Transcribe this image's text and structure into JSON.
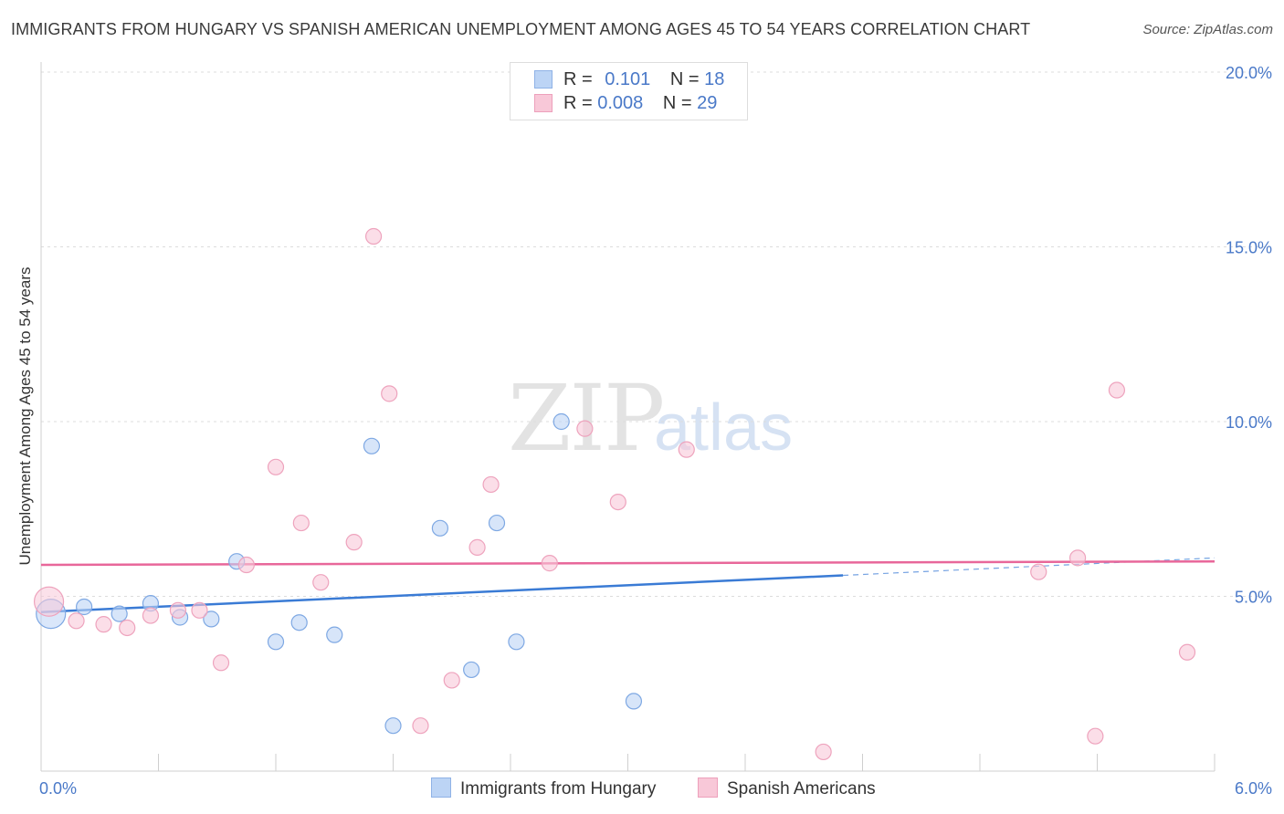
{
  "title": "IMMIGRANTS FROM HUNGARY VS SPANISH AMERICAN UNEMPLOYMENT AMONG AGES 45 TO 54 YEARS CORRELATION CHART",
  "source": "Source: ZipAtlas.com",
  "watermark": {
    "zip": "ZIP",
    "atlas": "atlas"
  },
  "colors": {
    "blue": "#3a7bd5",
    "blue_fill": "#bcd4f5",
    "pink": "#e8679a",
    "pink_fill": "#f8c8d8",
    "tick_text": "#4a79c8"
  },
  "legend_top": {
    "rows": [
      {
        "r_label": "R = ",
        "r_value": "0.101",
        "n_label": "N = ",
        "n_value": "18"
      },
      {
        "r_label": "R = ",
        "r_value": "0.008",
        "n_label": "N = ",
        "n_value": "29"
      }
    ]
  },
  "chart_data": {
    "type": "scatter",
    "title": "IMMIGRANTS FROM HUNGARY VS SPANISH AMERICAN UNEMPLOYMENT AMONG AGES 45 TO 54 YEARS CORRELATION CHART",
    "xlabel": "",
    "ylabel": "Unemployment Among Ages 45 to 54 years",
    "xlim": [
      0,
      6
    ],
    "ylim": [
      0,
      20
    ],
    "x_tick_labels": [
      "0.0%",
      "6.0%"
    ],
    "y_ticks": [
      5,
      10,
      15,
      20
    ],
    "y_tick_labels": [
      "5.0%",
      "10.0%",
      "15.0%",
      "20.0%"
    ],
    "grid": true,
    "legend_placement": "bottom",
    "series": [
      {
        "name": "Immigrants from Hungary",
        "color": "#3a7bd5",
        "points": [
          {
            "x": 0.05,
            "y": 4.5,
            "big": true
          },
          {
            "x": 0.22,
            "y": 4.7
          },
          {
            "x": 0.4,
            "y": 4.5
          },
          {
            "x": 0.56,
            "y": 4.8
          },
          {
            "x": 0.71,
            "y": 4.4
          },
          {
            "x": 0.87,
            "y": 4.35
          },
          {
            "x": 1.0,
            "y": 6.0
          },
          {
            "x": 1.2,
            "y": 3.7
          },
          {
            "x": 1.32,
            "y": 4.25
          },
          {
            "x": 1.5,
            "y": 3.9
          },
          {
            "x": 1.69,
            "y": 9.3
          },
          {
            "x": 1.8,
            "y": 1.3
          },
          {
            "x": 2.04,
            "y": 6.95
          },
          {
            "x": 2.2,
            "y": 2.9
          },
          {
            "x": 2.33,
            "y": 7.1
          },
          {
            "x": 2.43,
            "y": 3.7
          },
          {
            "x": 2.66,
            "y": 10.0
          },
          {
            "x": 3.03,
            "y": 2.0
          }
        ],
        "trend": {
          "x": [
            0,
            4.1
          ],
          "y": [
            4.55,
            5.6
          ],
          "dashed_to": [
            6.0,
            6.1
          ]
        }
      },
      {
        "name": "Spanish Americans",
        "color": "#e8679a",
        "points": [
          {
            "x": 0.04,
            "y": 4.85,
            "big": true
          },
          {
            "x": 0.18,
            "y": 4.3
          },
          {
            "x": 0.32,
            "y": 4.2
          },
          {
            "x": 0.44,
            "y": 4.1
          },
          {
            "x": 0.56,
            "y": 4.45
          },
          {
            "x": 0.7,
            "y": 4.6
          },
          {
            "x": 0.81,
            "y": 4.6
          },
          {
            "x": 0.92,
            "y": 3.1
          },
          {
            "x": 1.05,
            "y": 5.9
          },
          {
            "x": 1.2,
            "y": 8.7
          },
          {
            "x": 1.33,
            "y": 7.1
          },
          {
            "x": 1.43,
            "y": 5.4
          },
          {
            "x": 1.6,
            "y": 6.55
          },
          {
            "x": 1.7,
            "y": 15.3
          },
          {
            "x": 1.78,
            "y": 10.8
          },
          {
            "x": 1.94,
            "y": 1.3
          },
          {
            "x": 2.1,
            "y": 2.6
          },
          {
            "x": 2.23,
            "y": 6.4
          },
          {
            "x": 2.3,
            "y": 8.2
          },
          {
            "x": 2.6,
            "y": 5.95
          },
          {
            "x": 2.78,
            "y": 9.8
          },
          {
            "x": 2.95,
            "y": 7.7
          },
          {
            "x": 3.3,
            "y": 9.2
          },
          {
            "x": 4.0,
            "y": 0.55
          },
          {
            "x": 5.1,
            "y": 5.7
          },
          {
            "x": 5.3,
            "y": 6.1
          },
          {
            "x": 5.39,
            "y": 1.0
          },
          {
            "x": 5.5,
            "y": 10.9
          },
          {
            "x": 5.86,
            "y": 3.4
          }
        ],
        "trend": {
          "x": [
            0,
            6.0
          ],
          "y": [
            5.9,
            6.0
          ]
        }
      }
    ]
  }
}
